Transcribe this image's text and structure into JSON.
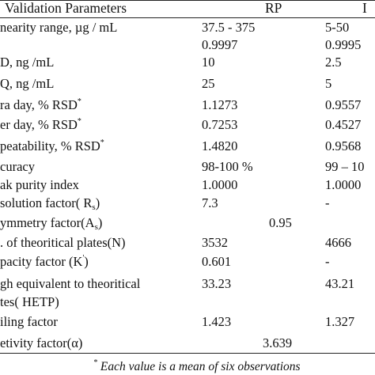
{
  "header": {
    "col_param": "Validation Parameters",
    "col_rp": "RP",
    "col_other": "I"
  },
  "rows": [
    {
      "param": "nearity range,  µg / mL",
      "rp": "37.5 - 375",
      "other": "5-50"
    },
    {
      "param": "",
      "rp": "0.9997",
      "other": "0.9995"
    },
    {
      "param": "D, ng /mL",
      "rp": "10",
      "other": "2.5"
    },
    {
      "param": "Q, ng /mL",
      "rp": "25",
      "other": "5"
    },
    {
      "param": "ra day, % RSD",
      "sup": "*",
      "rp": "1.1273",
      "other": "0.9557"
    },
    {
      "param": "er day, % RSD",
      "sup": "*",
      "rp": "0.7253",
      "other": "0.4527"
    },
    {
      "param": "peatability, % RSD",
      "sup": "*",
      "rp": "1.4820",
      "other": "0.9568"
    },
    {
      "param": "curacy",
      "rp": "98-100 %",
      "other": "99 – 10"
    },
    {
      "param": "ak purity index",
      "rp": "1.0000",
      "other": "1.0000"
    },
    {
      "param": "solution factor( R",
      "sub": "s",
      "tail": ")",
      "rp": "7.3",
      "other": "-"
    },
    {
      "param": "ymmetry factor(A",
      "sub": "s",
      "tail": ")",
      "merged": "0.95"
    },
    {
      "param": ". of theoritical plates(N)",
      "rp": "3532",
      "other": "4666"
    },
    {
      "param": "pacity factor (K",
      "sup": "'",
      "tail": ")",
      "rp": "0.601",
      "other": "-"
    },
    {
      "param": "gh equivalent to theoritical",
      "rp": "33.23",
      "other": "43.21"
    },
    {
      "param": "tes( HETP)",
      "rp": "",
      "other": ""
    },
    {
      "param": "iling factor",
      "rp": "1.423",
      "other": "1.327"
    },
    {
      "param": "etivity factor(α)",
      "merged": "3.639"
    }
  ],
  "footnote": {
    "mark": "*",
    "text": " Each value is a mean of six observations"
  }
}
